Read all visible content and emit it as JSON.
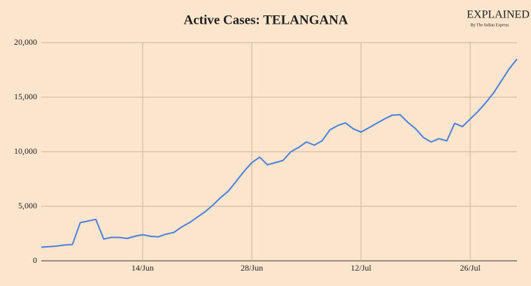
{
  "chart_data": {
    "type": "line",
    "title": "Active Cases: TELANGANA",
    "logo": "EXPLAINED",
    "logo_subtitle": "By The Indian Express",
    "categories": [
      null,
      null,
      null,
      null,
      null,
      null,
      null,
      null,
      null,
      null,
      null,
      null,
      null,
      "14/Jun",
      null,
      null,
      null,
      null,
      null,
      null,
      null,
      null,
      null,
      null,
      null,
      null,
      null,
      "28/Jun",
      null,
      null,
      null,
      null,
      null,
      null,
      null,
      null,
      null,
      null,
      null,
      null,
      null,
      "12/Jul",
      null,
      null,
      null,
      null,
      null,
      null,
      null,
      null,
      null,
      null,
      null,
      null,
      null,
      "26/Jul",
      null,
      null,
      null,
      null,
      null,
      null
    ],
    "series": [
      {
        "name": "Active Cases",
        "color": "#4a7fde",
        "values": [
          1250,
          1300,
          1350,
          1450,
          1500,
          3500,
          3650,
          3800,
          2000,
          2150,
          2150,
          2050,
          2250,
          2400,
          2250,
          2200,
          2450,
          2600,
          3100,
          3500,
          4000,
          4500,
          5100,
          5800,
          6400,
          7300,
          8200,
          9000,
          9500,
          8800,
          9000,
          9200,
          10000,
          10400,
          10900,
          10600,
          11000,
          12000,
          12400,
          12650,
          12100,
          11800,
          12200,
          12600,
          13000,
          13350,
          13400,
          12700,
          12100,
          11300,
          10900,
          11200,
          11000,
          12600,
          12300,
          13000,
          13700,
          14500,
          15400,
          16500,
          17600,
          18500
        ]
      }
    ],
    "ylim": [
      0,
      20000
    ],
    "yticks": [
      0,
      {
        "value": 5000,
        "label": "5,000"
      },
      {
        "value": 10000,
        "label": "10,000"
      },
      {
        "value": 15000,
        "label": "15,000"
      },
      {
        "value": 20000,
        "label": "20,000"
      }
    ],
    "grid": true
  }
}
